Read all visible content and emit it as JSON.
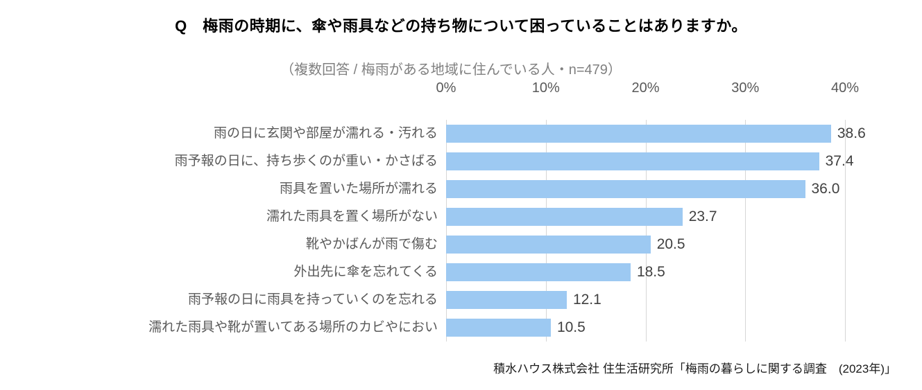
{
  "title": "Q　梅雨の時期に、傘や雨具などの持ち物について困っていることはありますか。",
  "subtitle": "（複数回答 / 梅雨がある地域に住んでいる人・n=479）",
  "source": "積水ハウス株式会社 住生活研究所「梅雨の暮らしに関する調査　(2023年)」",
  "colors": {
    "bar": "#9dc9f2",
    "gridline": "#d6d6d6",
    "axis_text": "#595959",
    "category_text": "#595959",
    "value_text": "#404040"
  },
  "chart_data": {
    "type": "bar",
    "orientation": "horizontal",
    "title": "Q　梅雨の時期に、傘や雨具などの持ち物について困っていることはありますか。",
    "subtitle": "（複数回答 / 梅雨がある地域に住んでいる人・n=479）",
    "categories": [
      "雨の日に玄関や部屋が濡れる・汚れる",
      "雨予報の日に、持ち歩くのが重い・かさばる",
      "雨具を置いた場所が濡れる",
      "濡れた雨具を置く場所がない",
      "靴やかばんが雨で傷む",
      "外出先に傘を忘れてくる",
      "雨予報の日に雨具を持っていくのを忘れる",
      "濡れた雨具や靴が置いてある場所のカビやにおい"
    ],
    "values": [
      38.6,
      37.4,
      36.0,
      23.7,
      20.5,
      18.5,
      12.1,
      10.5
    ],
    "value_labels": [
      "38.6",
      "37.4",
      "36.0",
      "23.7",
      "20.5",
      "18.5",
      "12.1",
      "10.5"
    ],
    "xlim": [
      0,
      40
    ],
    "x_ticks": [
      "0%",
      "10%",
      "20%",
      "30%",
      "40%"
    ],
    "grid": true,
    "legend": "none"
  }
}
